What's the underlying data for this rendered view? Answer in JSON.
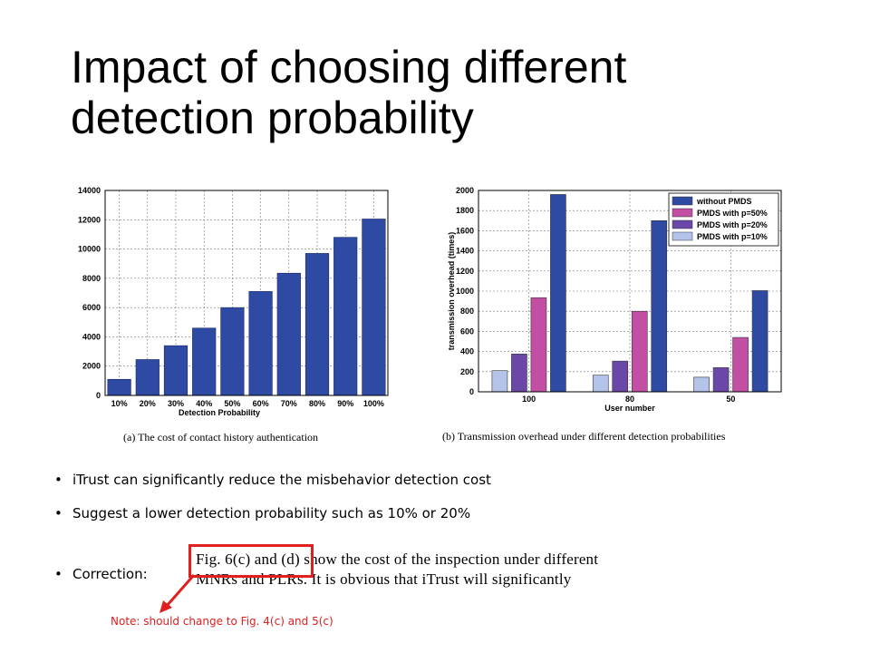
{
  "slide": {
    "title": "Impact of choosing different detection probability"
  },
  "bullets": [
    "iTrust can significantly reduce the misbehavior detection cost",
    "Suggest a lower detection probability such as 10% or 20%",
    "Correction:"
  ],
  "correction_excerpt": {
    "line1": "Fig. 6(c) and (d) show the cost of the inspection under different",
    "line2": "MNRs and PLRs. It is obvious that iTrust will significantly"
  },
  "note": "Note: should change to Fig. 4(c) and 5(c)",
  "colors": {
    "bar_a": "#2e4aa3",
    "annotation_red": "#e0201e",
    "series": [
      "#2e4aa3",
      "#c34fa5",
      "#6b48a8",
      "#b4c3ea"
    ]
  },
  "chart_data": [
    {
      "type": "bar",
      "categories": [
        "10%",
        "20%",
        "30%",
        "40%",
        "50%",
        "60%",
        "70%",
        "80%",
        "90%",
        "100%"
      ],
      "values": [
        1100,
        2450,
        3400,
        4600,
        6000,
        7100,
        8350,
        9700,
        10800,
        12050
      ],
      "xlabel": "Detection Probability",
      "ylabel": "",
      "ylim": [
        0,
        14000
      ],
      "yticks": [
        "0",
        "2000",
        "4000",
        "6000",
        "8000",
        "10000",
        "12000",
        "14000"
      ],
      "caption": "(a) The cost of contact history authentication",
      "grid": true
    },
    {
      "type": "bar",
      "categories": [
        "100",
        "80",
        "50"
      ],
      "series": [
        {
          "name": "PMDS with p=10%",
          "values": [
            210,
            165,
            145
          ]
        },
        {
          "name": "PMDS with p=20%",
          "values": [
            375,
            305,
            240
          ]
        },
        {
          "name": "PMDS with p=50%",
          "values": [
            935,
            800,
            540
          ]
        },
        {
          "name": "without PMDS",
          "values": [
            1960,
            1700,
            1005
          ]
        }
      ],
      "legend_order": [
        "without PMDS",
        "PMDS with p=50%",
        "PMDS with p=20%",
        "PMDS with p=10%"
      ],
      "legend_position": "top-right",
      "xlabel": "User number",
      "ylabel": "transmission overhead (times)",
      "ylim": [
        0,
        2000
      ],
      "yticks": [
        "0",
        "200",
        "400",
        "600",
        "800",
        "1000",
        "1200",
        "1400",
        "1600",
        "1800",
        "2000"
      ],
      "caption": "(b) Transmission overhead under different detection probabilities",
      "grid": true
    }
  ]
}
